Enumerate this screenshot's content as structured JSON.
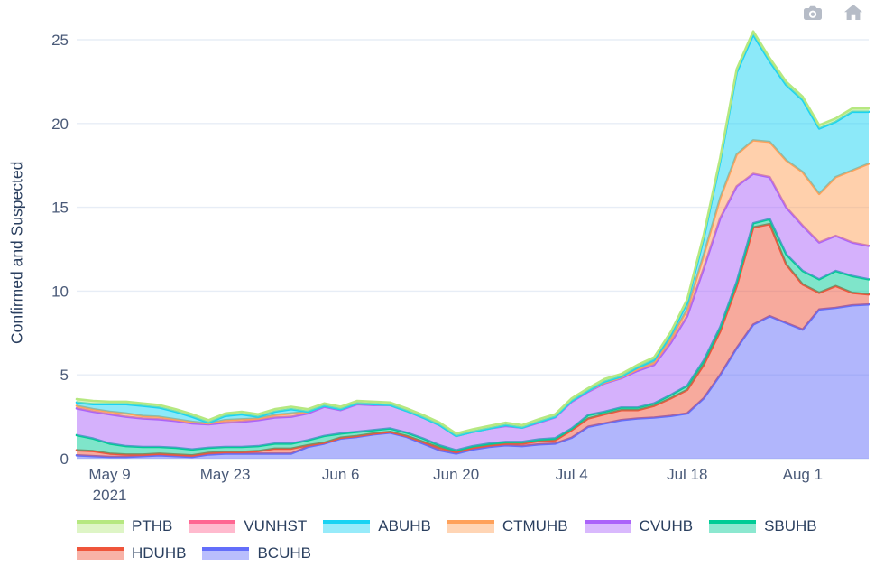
{
  "modebar": {
    "buttons": [
      {
        "name": "download-plot-as-png",
        "icon": "camera-icon"
      },
      {
        "name": "reset-axes",
        "icon": "home-icon"
      }
    ],
    "icon_color": "#b6bcc7"
  },
  "chart_data": {
    "type": "area",
    "stacked": true,
    "title": "",
    "xlabel": "",
    "ylabel": "Confirmed and Suspected",
    "ylim": [
      0,
      26.5
    ],
    "grid": true,
    "grid_color": "#e7edf6",
    "legend_position": "bottom-left",
    "y_ticks": [
      0,
      5,
      10,
      15,
      20,
      25
    ],
    "x_ticks": [
      {
        "label": "May 9",
        "sublabel": "2021",
        "index": 2
      },
      {
        "label": "May 23",
        "index": 9
      },
      {
        "label": "Jun 6",
        "index": 16
      },
      {
        "label": "Jun 20",
        "index": 23
      },
      {
        "label": "Jul 4",
        "index": 30
      },
      {
        "label": "Jul 18",
        "index": 37
      },
      {
        "label": "Aug 1",
        "index": 44
      }
    ],
    "dates": [
      "May 5",
      "May 7",
      "May 9",
      "May 11",
      "May 13",
      "May 15",
      "May 17",
      "May 19",
      "May 21",
      "May 23",
      "May 25",
      "May 27",
      "May 29",
      "May 31",
      "Jun 2",
      "Jun 4",
      "Jun 6",
      "Jun 8",
      "Jun 10",
      "Jun 12",
      "Jun 14",
      "Jun 16",
      "Jun 18",
      "Jun 20",
      "Jun 22",
      "Jun 24",
      "Jun 26",
      "Jun 28",
      "Jun 30",
      "Jul 2",
      "Jul 4",
      "Jul 6",
      "Jul 8",
      "Jul 10",
      "Jul 12",
      "Jul 14",
      "Jul 16",
      "Jul 18",
      "Jul 20",
      "Jul 22",
      "Jul 24",
      "Jul 26",
      "Jul 28",
      "Jul 30",
      "Aug 1",
      "Aug 3",
      "Aug 5",
      "Aug 7",
      "Aug 9"
    ],
    "year": "2021",
    "stack_order_bottom_to_top": [
      "BCUHB",
      "HDUHB",
      "SBUHB",
      "CVUHB",
      "CTMUHB",
      "ABUHB",
      "VUNHST",
      "PTHB"
    ],
    "series": [
      {
        "name": "BCUHB",
        "color": "#636efa",
        "values": [
          0.2,
          0.15,
          0.1,
          0.1,
          0.15,
          0.2,
          0.15,
          0.1,
          0.25,
          0.3,
          0.3,
          0.3,
          0.3,
          0.3,
          0.7,
          0.9,
          1.2,
          1.3,
          1.45,
          1.55,
          1.3,
          0.9,
          0.5,
          0.3,
          0.55,
          0.7,
          0.8,
          0.75,
          0.85,
          0.9,
          1.25,
          1.9,
          2.1,
          2.3,
          2.4,
          2.45,
          2.55,
          2.7,
          3.6,
          5.0,
          6.6,
          8.0,
          8.5,
          8.1,
          7.7,
          8.9,
          9.0,
          9.15,
          9.2
        ]
      },
      {
        "name": "HDUHB",
        "color": "#ef553b",
        "values": [
          0.3,
          0.3,
          0.2,
          0.15,
          0.1,
          0.1,
          0.1,
          0.1,
          0.1,
          0.1,
          0.1,
          0.15,
          0.3,
          0.3,
          0.1,
          0.05,
          0.05,
          0.05,
          0.05,
          0.05,
          0.05,
          0.1,
          0.15,
          0.1,
          0.1,
          0.1,
          0.1,
          0.15,
          0.2,
          0.2,
          0.45,
          0.5,
          0.55,
          0.6,
          0.5,
          0.7,
          1.05,
          1.4,
          2.0,
          2.6,
          3.7,
          5.8,
          5.5,
          3.5,
          2.7,
          1.0,
          1.3,
          0.75,
          0.6
        ]
      },
      {
        "name": "SBUHB",
        "color": "#00cc96",
        "values": [
          0.9,
          0.75,
          0.6,
          0.5,
          0.45,
          0.4,
          0.4,
          0.35,
          0.3,
          0.3,
          0.3,
          0.3,
          0.3,
          0.3,
          0.3,
          0.4,
          0.25,
          0.25,
          0.2,
          0.2,
          0.2,
          0.2,
          0.15,
          0.1,
          0.1,
          0.1,
          0.1,
          0.1,
          0.1,
          0.12,
          0.1,
          0.2,
          0.15,
          0.15,
          0.15,
          0.15,
          0.2,
          0.25,
          0.25,
          0.25,
          0.25,
          0.25,
          0.3,
          0.6,
          0.8,
          0.8,
          0.9,
          1.0,
          0.9
        ]
      },
      {
        "name": "CVUHB",
        "color": "#ab63fa",
        "values": [
          1.6,
          1.6,
          1.75,
          1.75,
          1.7,
          1.65,
          1.6,
          1.55,
          1.4,
          1.45,
          1.5,
          1.55,
          1.55,
          1.6,
          1.6,
          1.75,
          1.4,
          1.65,
          1.5,
          1.4,
          1.3,
          1.25,
          1.2,
          0.85,
          0.85,
          0.9,
          0.95,
          0.85,
          1.0,
          1.25,
          1.6,
          1.4,
          1.7,
          1.75,
          2.2,
          2.3,
          3.1,
          4.15,
          5.5,
          6.5,
          5.7,
          2.95,
          2.5,
          2.8,
          2.7,
          2.2,
          2.1,
          2.0,
          2.0
        ]
      },
      {
        "name": "CTMUHB",
        "color": "#ffa15a",
        "values": [
          0.15,
          0.15,
          0.15,
          0.2,
          0.15,
          0.15,
          0.1,
          0.1,
          0.05,
          0.15,
          0.15,
          0.1,
          0.15,
          0.2,
          0.1,
          0.05,
          0.05,
          0.05,
          0.05,
          0,
          0,
          0,
          0,
          0,
          0,
          0,
          0.05,
          0,
          0.05,
          0.03,
          0.05,
          0.05,
          0.05,
          0.05,
          0.1,
          0.15,
          0.25,
          0.4,
          0.8,
          1.2,
          1.9,
          2.0,
          2.1,
          2.8,
          3.2,
          2.9,
          3.5,
          4.3,
          4.9
        ]
      },
      {
        "name": "ABUHB",
        "color": "#19d3f3",
        "values": [
          0.2,
          0.3,
          0.45,
          0.55,
          0.6,
          0.55,
          0.45,
          0.3,
          0.05,
          0.25,
          0.3,
          0.1,
          0.2,
          0.25,
          0,
          0,
          0,
          0,
          0,
          0,
          0,
          0,
          0,
          0,
          0,
          0,
          0,
          0,
          0,
          0,
          0,
          0,
          0.05,
          0.05,
          0.1,
          0.15,
          0.25,
          0.4,
          1.0,
          2.2,
          4.9,
          6.3,
          4.8,
          4.5,
          4.3,
          3.9,
          3.3,
          3.5,
          3.1
        ]
      },
      {
        "name": "VUNHST",
        "color": "#ff6692",
        "values": [
          0,
          0,
          0,
          0,
          0,
          0,
          0,
          0,
          0,
          0,
          0,
          0,
          0,
          0,
          0,
          0,
          0,
          0,
          0,
          0,
          0,
          0,
          0,
          0,
          0,
          0,
          0,
          0,
          0,
          0,
          0,
          0,
          0,
          0,
          0,
          0,
          0,
          0,
          0,
          0,
          0,
          0,
          0,
          0,
          0,
          0,
          0,
          0,
          0
        ]
      },
      {
        "name": "PTHB",
        "color": "#b6e880",
        "values": [
          0.2,
          0.2,
          0.15,
          0.15,
          0.15,
          0.15,
          0.15,
          0.15,
          0.15,
          0.15,
          0.15,
          0.15,
          0.15,
          0.15,
          0.15,
          0.15,
          0.15,
          0.15,
          0.15,
          0.15,
          0.15,
          0.15,
          0.15,
          0.15,
          0.15,
          0.15,
          0.15,
          0.15,
          0.15,
          0.15,
          0.15,
          0.15,
          0.15,
          0.15,
          0.15,
          0.15,
          0.15,
          0.2,
          0.2,
          0.2,
          0.2,
          0.2,
          0.2,
          0.2,
          0.2,
          0.2,
          0.2,
          0.2,
          0.2
        ]
      }
    ],
    "legend_items": [
      {
        "label": "PTHB",
        "color": "#b6e880"
      },
      {
        "label": "VUNHST",
        "color": "#ff6692"
      },
      {
        "label": "ABUHB",
        "color": "#19d3f3"
      },
      {
        "label": "CTMUHB",
        "color": "#ffa15a"
      },
      {
        "label": "CVUHB",
        "color": "#ab63fa"
      },
      {
        "label": "SBUHB",
        "color": "#00cc96"
      },
      {
        "label": "HDUHB",
        "color": "#ef553b"
      },
      {
        "label": "BCUHB",
        "color": "#636efa"
      }
    ],
    "fill_opacity": 0.5,
    "line_width": 2.6,
    "tick_color": "#4a5a78",
    "text_color": "#2a3f5f"
  }
}
